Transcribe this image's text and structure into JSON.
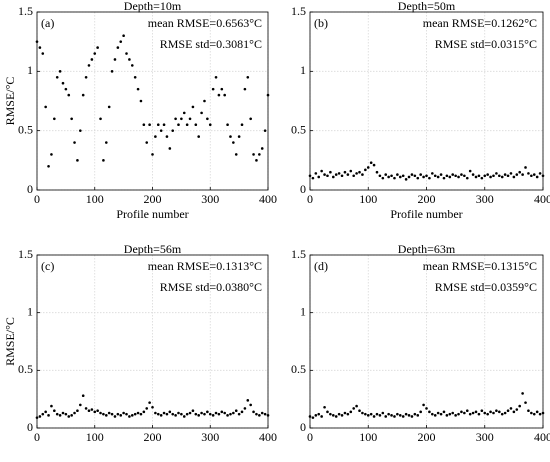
{
  "chart_data": [
    {
      "type": "scatter",
      "title": "Depth=10m",
      "panel_label": "(a)",
      "annotations": [
        "mean RMSE=0.6563°C",
        "RMSE std=0.3081°C"
      ],
      "xlabel": "Profile number",
      "ylabel": "RMSE/°C",
      "color": "#000000",
      "xlim": [
        0,
        400
      ],
      "xticks": [
        0,
        100,
        200,
        300,
        400
      ],
      "ylim": [
        0,
        1.5
      ],
      "yticks": [
        0,
        0.5,
        1,
        1.5
      ],
      "grid": true,
      "x": [
        0,
        5,
        10,
        15,
        20,
        25,
        30,
        35,
        40,
        45,
        50,
        55,
        60,
        65,
        70,
        75,
        80,
        85,
        90,
        95,
        100,
        105,
        110,
        115,
        120,
        125,
        130,
        135,
        140,
        145,
        150,
        155,
        160,
        165,
        170,
        175,
        180,
        185,
        190,
        195,
        200,
        205,
        210,
        215,
        220,
        225,
        230,
        235,
        240,
        245,
        250,
        255,
        260,
        265,
        270,
        275,
        280,
        285,
        290,
        295,
        300,
        305,
        310,
        315,
        320,
        325,
        330,
        335,
        340,
        345,
        350,
        355,
        360,
        365,
        370,
        375,
        380,
        385,
        390,
        395,
        400
      ],
      "values": [
        1.25,
        1.2,
        1.15,
        0.7,
        0.2,
        0.3,
        0.6,
        0.95,
        1.0,
        0.9,
        0.85,
        0.8,
        0.6,
        0.4,
        0.25,
        0.5,
        0.8,
        0.95,
        1.05,
        1.1,
        1.15,
        1.2,
        0.6,
        0.25,
        0.4,
        0.7,
        1.0,
        1.1,
        1.2,
        1.25,
        1.3,
        1.15,
        1.1,
        1.05,
        0.95,
        0.85,
        0.75,
        0.55,
        0.4,
        0.55,
        0.3,
        0.45,
        0.55,
        0.5,
        0.55,
        0.45,
        0.35,
        0.5,
        0.6,
        0.55,
        0.6,
        0.65,
        0.55,
        0.6,
        0.7,
        0.55,
        0.45,
        0.65,
        0.75,
        0.6,
        0.55,
        0.85,
        0.95,
        0.8,
        0.85,
        0.8,
        0.55,
        0.45,
        0.4,
        0.3,
        0.45,
        0.55,
        0.85,
        0.95,
        0.6,
        0.3,
        0.25,
        0.3,
        0.35,
        0.5,
        0.8
      ]
    },
    {
      "type": "scatter",
      "title": "Depth=50m",
      "panel_label": "(b)",
      "annotations": [
        "mean RMSE=0.1262°C",
        "RMSE std=0.0315°C"
      ],
      "xlabel": "Profile number",
      "color": "#000000",
      "xlim": [
        0,
        400
      ],
      "xticks": [
        0,
        100,
        200,
        300,
        400
      ],
      "ylim": [
        0,
        1.5
      ],
      "yticks": [
        0,
        0.5,
        1,
        1.5
      ],
      "grid": true,
      "x": [
        0,
        5,
        10,
        15,
        20,
        25,
        30,
        35,
        40,
        45,
        50,
        55,
        60,
        65,
        70,
        75,
        80,
        85,
        90,
        95,
        100,
        105,
        110,
        115,
        120,
        125,
        130,
        135,
        140,
        145,
        150,
        155,
        160,
        165,
        170,
        175,
        180,
        185,
        190,
        195,
        200,
        205,
        210,
        215,
        220,
        225,
        230,
        235,
        240,
        245,
        250,
        255,
        260,
        265,
        270,
        275,
        280,
        285,
        290,
        295,
        300,
        305,
        310,
        315,
        320,
        325,
        330,
        335,
        340,
        345,
        350,
        355,
        360,
        365,
        370,
        375,
        380,
        385,
        390,
        395,
        400
      ],
      "values": [
        0.12,
        0.1,
        0.14,
        0.11,
        0.16,
        0.13,
        0.12,
        0.15,
        0.11,
        0.13,
        0.14,
        0.12,
        0.15,
        0.13,
        0.16,
        0.12,
        0.14,
        0.15,
        0.13,
        0.17,
        0.19,
        0.23,
        0.21,
        0.15,
        0.12,
        0.1,
        0.13,
        0.11,
        0.12,
        0.1,
        0.13,
        0.11,
        0.12,
        0.09,
        0.11,
        0.13,
        0.12,
        0.1,
        0.13,
        0.11,
        0.12,
        0.1,
        0.14,
        0.12,
        0.11,
        0.13,
        0.1,
        0.12,
        0.11,
        0.13,
        0.12,
        0.11,
        0.13,
        0.12,
        0.1,
        0.16,
        0.13,
        0.11,
        0.12,
        0.1,
        0.12,
        0.13,
        0.11,
        0.12,
        0.14,
        0.12,
        0.11,
        0.13,
        0.12,
        0.14,
        0.11,
        0.13,
        0.15,
        0.13,
        0.19,
        0.14,
        0.12,
        0.13,
        0.11,
        0.14,
        0.12
      ]
    },
    {
      "type": "scatter",
      "title": "Depth=56m",
      "panel_label": "(c)",
      "annotations": [
        "mean RMSE=0.1313°C",
        "RMSE std=0.0380°C"
      ],
      "ylabel": "RMSE/°C",
      "color": "#000000",
      "xlim": [
        0,
        400
      ],
      "xticks": [
        0,
        100,
        200,
        300,
        400
      ],
      "ylim": [
        0,
        1.5
      ],
      "yticks": [
        0,
        0.5,
        1,
        1.5
      ],
      "grid": true,
      "x": [
        0,
        5,
        10,
        15,
        20,
        25,
        30,
        35,
        40,
        45,
        50,
        55,
        60,
        65,
        70,
        75,
        80,
        85,
        90,
        95,
        100,
        105,
        110,
        115,
        120,
        125,
        130,
        135,
        140,
        145,
        150,
        155,
        160,
        165,
        170,
        175,
        180,
        185,
        190,
        195,
        200,
        205,
        210,
        215,
        220,
        225,
        230,
        235,
        240,
        245,
        250,
        255,
        260,
        265,
        270,
        275,
        280,
        285,
        290,
        295,
        300,
        305,
        310,
        315,
        320,
        325,
        330,
        335,
        340,
        345,
        350,
        355,
        360,
        365,
        370,
        375,
        380,
        385,
        390,
        395,
        400
      ],
      "values": [
        0.09,
        0.1,
        0.12,
        0.14,
        0.11,
        0.19,
        0.15,
        0.12,
        0.11,
        0.13,
        0.12,
        0.1,
        0.11,
        0.13,
        0.15,
        0.2,
        0.28,
        0.17,
        0.15,
        0.16,
        0.14,
        0.15,
        0.13,
        0.12,
        0.11,
        0.13,
        0.12,
        0.1,
        0.12,
        0.11,
        0.13,
        0.12,
        0.1,
        0.11,
        0.12,
        0.13,
        0.12,
        0.14,
        0.17,
        0.22,
        0.18,
        0.13,
        0.12,
        0.11,
        0.13,
        0.12,
        0.14,
        0.12,
        0.11,
        0.13,
        0.12,
        0.1,
        0.12,
        0.13,
        0.15,
        0.12,
        0.11,
        0.13,
        0.12,
        0.14,
        0.12,
        0.11,
        0.13,
        0.12,
        0.14,
        0.13,
        0.11,
        0.12,
        0.13,
        0.15,
        0.12,
        0.14,
        0.17,
        0.24,
        0.2,
        0.14,
        0.12,
        0.11,
        0.13,
        0.12,
        0.11
      ]
    },
    {
      "type": "scatter",
      "title": "Depth=63m",
      "panel_label": "(d)",
      "annotations": [
        "mean RMSE=0.1315°C",
        "RMSE std=0.0359°C"
      ],
      "color": "#000000",
      "xlim": [
        0,
        400
      ],
      "xticks": [
        0,
        100,
        200,
        300,
        400
      ],
      "ylim": [
        0,
        1.5
      ],
      "yticks": [
        0,
        0.5,
        1,
        1.5
      ],
      "grid": true,
      "x": [
        0,
        5,
        10,
        15,
        20,
        25,
        30,
        35,
        40,
        45,
        50,
        55,
        60,
        65,
        70,
        75,
        80,
        85,
        90,
        95,
        100,
        105,
        110,
        115,
        120,
        125,
        130,
        135,
        140,
        145,
        150,
        155,
        160,
        165,
        170,
        175,
        180,
        185,
        190,
        195,
        200,
        205,
        210,
        215,
        220,
        225,
        230,
        235,
        240,
        245,
        250,
        255,
        260,
        265,
        270,
        275,
        280,
        285,
        290,
        295,
        300,
        305,
        310,
        315,
        320,
        325,
        330,
        335,
        340,
        345,
        350,
        355,
        360,
        365,
        370,
        375,
        380,
        385,
        390,
        395,
        400
      ],
      "values": [
        0.1,
        0.09,
        0.11,
        0.12,
        0.1,
        0.18,
        0.14,
        0.12,
        0.11,
        0.1,
        0.12,
        0.11,
        0.13,
        0.12,
        0.14,
        0.17,
        0.19,
        0.15,
        0.13,
        0.12,
        0.11,
        0.12,
        0.1,
        0.12,
        0.11,
        0.13,
        0.1,
        0.12,
        0.11,
        0.1,
        0.12,
        0.11,
        0.1,
        0.12,
        0.11,
        0.1,
        0.12,
        0.11,
        0.14,
        0.2,
        0.17,
        0.14,
        0.12,
        0.11,
        0.13,
        0.12,
        0.14,
        0.11,
        0.12,
        0.13,
        0.11,
        0.12,
        0.14,
        0.13,
        0.15,
        0.12,
        0.13,
        0.14,
        0.12,
        0.15,
        0.13,
        0.12,
        0.14,
        0.13,
        0.15,
        0.14,
        0.12,
        0.13,
        0.15,
        0.17,
        0.14,
        0.16,
        0.19,
        0.3,
        0.22,
        0.15,
        0.13,
        0.12,
        0.14,
        0.12,
        0.13
      ]
    }
  ]
}
